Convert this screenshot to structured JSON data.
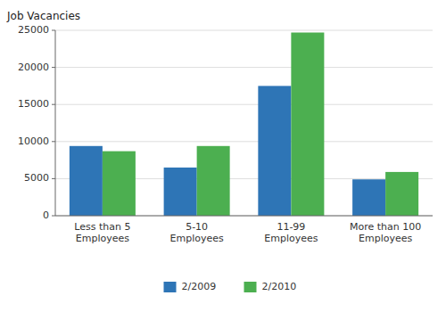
{
  "chart_data": {
    "type": "bar",
    "y_label": "Job Vacancies",
    "categories": [
      "Less than 5\nEmployees",
      "5-10\nEmployees",
      "11-99\nEmployees",
      "More than 100\nEmployees"
    ],
    "series": [
      {
        "name": "2/2009",
        "color": "#2E75B6",
        "values": [
          9400,
          6500,
          17500,
          4900
        ]
      },
      {
        "name": "2/2010",
        "color": "#4CAF50",
        "values": [
          8700,
          9400,
          24700,
          5900
        ]
      }
    ],
    "ylim": [
      0,
      25000
    ],
    "yticks": [
      0,
      5000,
      10000,
      15000,
      20000,
      25000
    ],
    "grid": true,
    "legend": "bottom"
  }
}
